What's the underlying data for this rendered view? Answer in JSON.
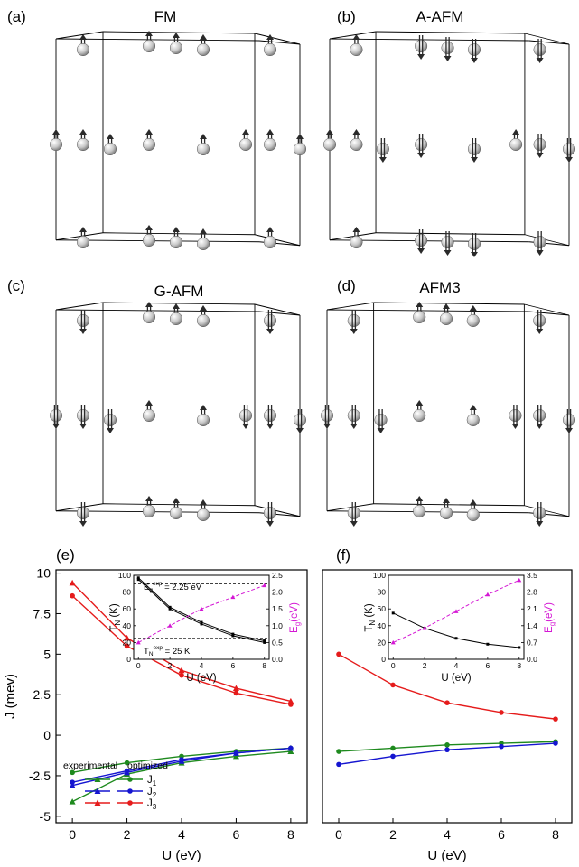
{
  "panels": {
    "a": {
      "letter": "(a)",
      "title": "FM",
      "spins": {
        "left": "u",
        "center": "u",
        "right": "u"
      }
    },
    "b": {
      "letter": "(b)",
      "title": "A-AFM",
      "spins": {
        "left": "u",
        "center": "d",
        "right": "d"
      }
    },
    "c": {
      "letter": "(c)",
      "title": "G-AFM",
      "spins": {
        "left": "d",
        "center": "u",
        "right": "d"
      }
    },
    "d": {
      "letter": "(d)",
      "title": "AFM3",
      "spins": {
        "left": "d",
        "center": "u",
        "right": "d"
      }
    }
  },
  "chart_e": {
    "letter": "(e)",
    "xlabel": "U (eV)",
    "ylabel": "J (mev)",
    "xlim": [
      -0.6,
      8.6
    ],
    "ylim": [
      -5.4,
      10.2
    ],
    "xticks": [
      0,
      2,
      4,
      6,
      8
    ],
    "yticks": [
      10,
      7.5,
      5,
      2.5,
      0,
      -2.5,
      -5
    ],
    "ytick_labels": [
      "10",
      "7.5",
      "5",
      "2.5",
      "0",
      "-2.5",
      "-5"
    ],
    "legend": {
      "header_experimental": "experimental",
      "header_optimized": "optimized",
      "labels": [
        "J1",
        "J2",
        "J3"
      ],
      "label_main": "J",
      "label_subs": [
        "1",
        "2",
        "3"
      ]
    },
    "colors": {
      "J1": "#1e8a1e",
      "J2": "#1515d0",
      "J3": "#e51b1b"
    },
    "chart_data": {
      "type": "line",
      "x": [
        0,
        2,
        4,
        6,
        8
      ],
      "series": [
        {
          "name": "J1",
          "group": "experimental",
          "marker": "triangle",
          "color": "#1e8a1e",
          "values": [
            -4.1,
            -2.4,
            -1.7,
            -1.3,
            -1.0
          ]
        },
        {
          "name": "J2",
          "group": "experimental",
          "marker": "triangle",
          "color": "#1515d0",
          "values": [
            -3.1,
            -2.3,
            -1.6,
            -1.1,
            -0.8
          ]
        },
        {
          "name": "J3",
          "group": "experimental",
          "marker": "triangle",
          "color": "#e51b1b",
          "values": [
            9.4,
            6.0,
            4.0,
            2.9,
            2.1
          ]
        },
        {
          "name": "J1",
          "group": "optimized",
          "marker": "circle",
          "color": "#1e8a1e",
          "values": [
            -2.3,
            -1.7,
            -1.3,
            -1.0,
            -0.8
          ]
        },
        {
          "name": "J2",
          "group": "optimized",
          "marker": "circle",
          "color": "#1515d0",
          "values": [
            -2.9,
            -2.2,
            -1.5,
            -1.1,
            -0.8
          ]
        },
        {
          "name": "J3",
          "group": "optimized",
          "marker": "circle",
          "color": "#e51b1b",
          "values": [
            8.6,
            5.5,
            3.7,
            2.6,
            1.9
          ]
        }
      ]
    },
    "inset": {
      "xlabel": "U (eV)",
      "ylabel_main": "T",
      "ylabel_sub": "N",
      "ylabel_unit": " (K)",
      "y2label_main": "E",
      "y2label_sub": "g",
      "y2label_unit": "(eV)",
      "xlim": [
        -0.3,
        8.3
      ],
      "ylim": [
        0,
        100
      ],
      "y2lim": [
        0,
        2.5
      ],
      "xticks": [
        0,
        2,
        4,
        6,
        8
      ],
      "yticks": [
        0,
        20,
        40,
        60,
        80,
        100
      ],
      "y2ticks": [
        "0.0",
        "0.5",
        "1.0",
        "1.5",
        "2.0",
        "2.5"
      ],
      "annot_eg": {
        "main": "E",
        "sub": "g",
        "sup": "exp",
        "rest": " = 2.25 eV"
      },
      "annot_tn": {
        "main": "T",
        "sub": "N",
        "sup": "exp",
        "rest": " = 25 K"
      },
      "ref_eg": 2.25,
      "ref_tn": 25,
      "chart_data": {
        "type": "line",
        "x": [
          0,
          2,
          4,
          6,
          8
        ],
        "series": [
          {
            "name": "TN experimental",
            "axis": "left",
            "color": "#000000",
            "values": [
              95,
              60,
              42,
              28,
              20
            ]
          },
          {
            "name": "TN optimized",
            "axis": "left",
            "color": "#000000",
            "values": [
              97,
              62,
              44,
              30,
              22
            ]
          },
          {
            "name": "Eg",
            "axis": "right",
            "color": "#d417d4",
            "dashed": true,
            "values": [
              0.5,
              1.0,
              1.5,
              1.85,
              2.2
            ]
          }
        ]
      }
    }
  },
  "chart_f": {
    "letter": "(f)",
    "xlabel": "U (eV)",
    "xlim": [
      -0.6,
      8.6
    ],
    "ylim": [
      -5.4,
      10.2
    ],
    "xticks": [
      0,
      2,
      4,
      6,
      8
    ],
    "chart_data": {
      "type": "line",
      "x": [
        0,
        2,
        4,
        6,
        8
      ],
      "series": [
        {
          "name": "J1",
          "color": "#1e8a1e",
          "values": [
            -1.0,
            -0.8,
            -0.6,
            -0.5,
            -0.4
          ]
        },
        {
          "name": "J2",
          "color": "#1515d0",
          "values": [
            -1.8,
            -1.3,
            -0.9,
            -0.7,
            -0.5
          ]
        },
        {
          "name": "J3",
          "color": "#e51b1b",
          "values": [
            5.0,
            3.1,
            2.0,
            1.4,
            1.0
          ]
        }
      ]
    },
    "inset": {
      "xlabel": "U (eV)",
      "ylabel_main": "T",
      "ylabel_sub": "N",
      "ylabel_unit": " (K)",
      "y2label_main": "E",
      "y2label_sub": "g",
      "y2label_unit": "(eV)",
      "xlim": [
        -0.3,
        8.3
      ],
      "ylim": [
        0,
        100
      ],
      "y2lim": [
        0,
        3.5
      ],
      "xticks": [
        0,
        2,
        4,
        6,
        8
      ],
      "yticks": [
        0,
        20,
        40,
        60,
        80,
        100
      ],
      "y2ticks": [
        "0.0",
        "0.7",
        "1.4",
        "2.1",
        "2.8",
        "3.5"
      ],
      "chart_data": {
        "type": "line",
        "x": [
          0,
          2,
          4,
          6,
          8
        ],
        "series": [
          {
            "name": "TN",
            "axis": "left",
            "color": "#000000",
            "values": [
              55,
              37,
              25,
              18,
              14
            ]
          },
          {
            "name": "Eg",
            "axis": "right",
            "color": "#d417d4",
            "dashed": true,
            "values": [
              0.7,
              1.3,
              2.0,
              2.7,
              3.3
            ]
          }
        ]
      }
    }
  }
}
